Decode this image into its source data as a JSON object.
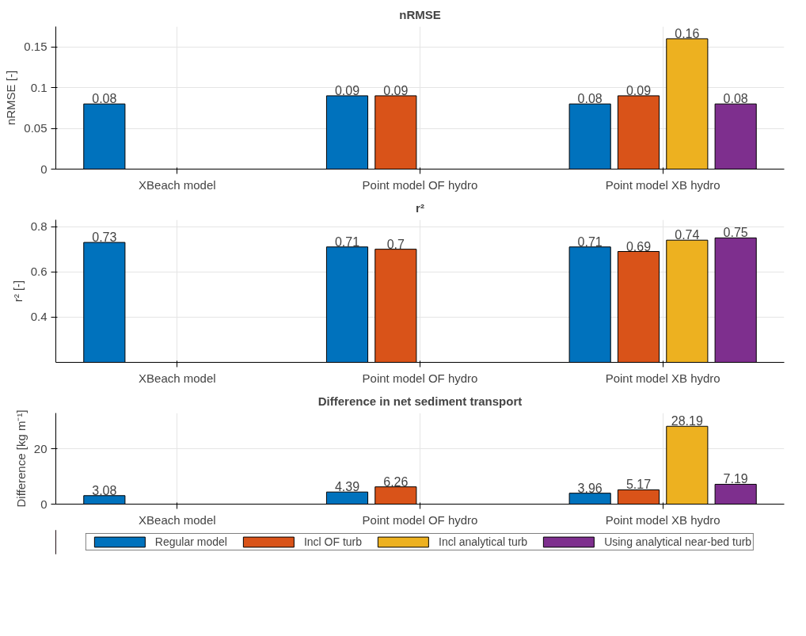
{
  "chart_data": [
    {
      "type": "bar",
      "title": "nRMSE",
      "ylabel": "nRMSE [-]",
      "categories": [
        "XBeach model",
        "Point model OF hydro",
        "Point model XB hydro"
      ],
      "ylim": [
        0,
        0.175
      ],
      "yticks": [
        0,
        0.05,
        0.1,
        0.15
      ],
      "grid": true,
      "data_labels": true,
      "series": [
        {
          "color": "#0072bd",
          "values": [
            0.08,
            0.09,
            0.08
          ]
        },
        {
          "color": "#d95319",
          "values": [
            null,
            0.09,
            0.09
          ]
        },
        {
          "color": "#edb120",
          "values": [
            null,
            null,
            0.16
          ]
        },
        {
          "color": "#7e2f8e",
          "values": [
            null,
            null,
            0.08
          ]
        }
      ]
    },
    {
      "type": "bar",
      "title": "r²",
      "ylabel": "r² [-]",
      "categories": [
        "XBeach model",
        "Point model OF hydro",
        "Point model XB hydro"
      ],
      "ylim": [
        0.2,
        0.83
      ],
      "yticks": [
        0.4,
        0.6,
        0.8
      ],
      "grid": true,
      "data_labels": true,
      "series": [
        {
          "color": "#0072bd",
          "values": [
            0.73,
            0.71,
            0.71
          ]
        },
        {
          "color": "#d95319",
          "values": [
            null,
            0.7,
            0.69
          ]
        },
        {
          "color": "#edb120",
          "values": [
            null,
            null,
            0.74
          ]
        },
        {
          "color": "#7e2f8e",
          "values": [
            null,
            null,
            0.75
          ]
        }
      ]
    },
    {
      "type": "bar",
      "title": "Difference in net sediment transport",
      "ylabel": "Difference [kg m⁻¹]",
      "categories": [
        "XBeach model",
        "Point model OF hydro",
        "Point model XB hydro"
      ],
      "ylim": [
        0,
        33
      ],
      "yticks": [
        0,
        20
      ],
      "grid": true,
      "data_labels": true,
      "legend": "bottom",
      "series": [
        {
          "name": "Regular model",
          "color": "#0072bd",
          "values": [
            3.08,
            4.39,
            3.96
          ]
        },
        {
          "name": "Incl OF turb",
          "color": "#d95319",
          "values": [
            null,
            6.26,
            5.17
          ]
        },
        {
          "name": "Incl analytical turb",
          "color": "#edb120",
          "values": [
            null,
            null,
            28.19
          ]
        },
        {
          "name": "Using analytical near-bed turb",
          "color": "#7e2f8e",
          "values": [
            null,
            null,
            7.19
          ]
        }
      ]
    }
  ]
}
